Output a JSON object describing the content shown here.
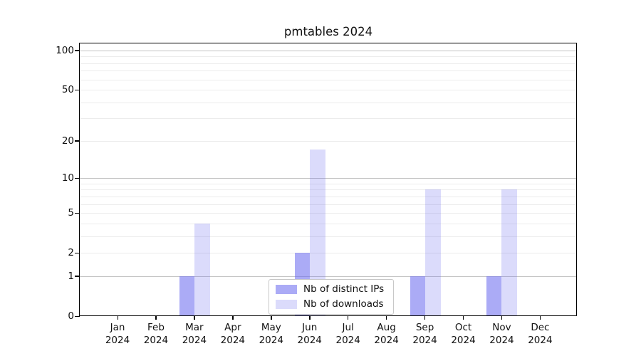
{
  "title": "pmtables 2024",
  "chart_data": {
    "type": "bar",
    "title": "pmtables 2024",
    "categories": [
      "Jan",
      "Feb",
      "Mar",
      "Apr",
      "May",
      "Jun",
      "Jul",
      "Aug",
      "Sep",
      "Oct",
      "Nov",
      "Dec"
    ],
    "year": "2024",
    "series": [
      {
        "name": "Nb of distinct IPs",
        "color": "#6666ee",
        "alpha": 0.55,
        "values": [
          0,
          0,
          1,
          0,
          0,
          2,
          0,
          0,
          1,
          0,
          1,
          0
        ]
      },
      {
        "name": "Nb of downloads",
        "color": "#6666ee",
        "alpha": 0.235,
        "values": [
          0,
          0,
          4,
          0,
          0,
          17,
          0,
          0,
          8,
          0,
          8,
          0
        ]
      }
    ],
    "y_axis": {
      "scale": "log1p",
      "tick_values": [
        0,
        1,
        2,
        5,
        10,
        20,
        50,
        100
      ],
      "major_grid_values": [
        1,
        10,
        100
      ],
      "minor_grid_values": [
        2,
        3,
        4,
        5,
        6,
        7,
        8,
        9,
        20,
        30,
        40,
        50,
        60,
        70,
        80,
        90
      ],
      "top_value": 113
    },
    "legend": {
      "position": "inside-bottom-center"
    },
    "grid": true
  },
  "colors": {
    "bar_distinct_ips_solid": "#aaaaf5",
    "bar_downloads_solid": "#dbdbfa",
    "major_gridline": "#c3c3c3",
    "minor_gridline": "#ececec",
    "axis": "#000000",
    "legend_border": "#c8c8c8",
    "text": "#111111"
  }
}
